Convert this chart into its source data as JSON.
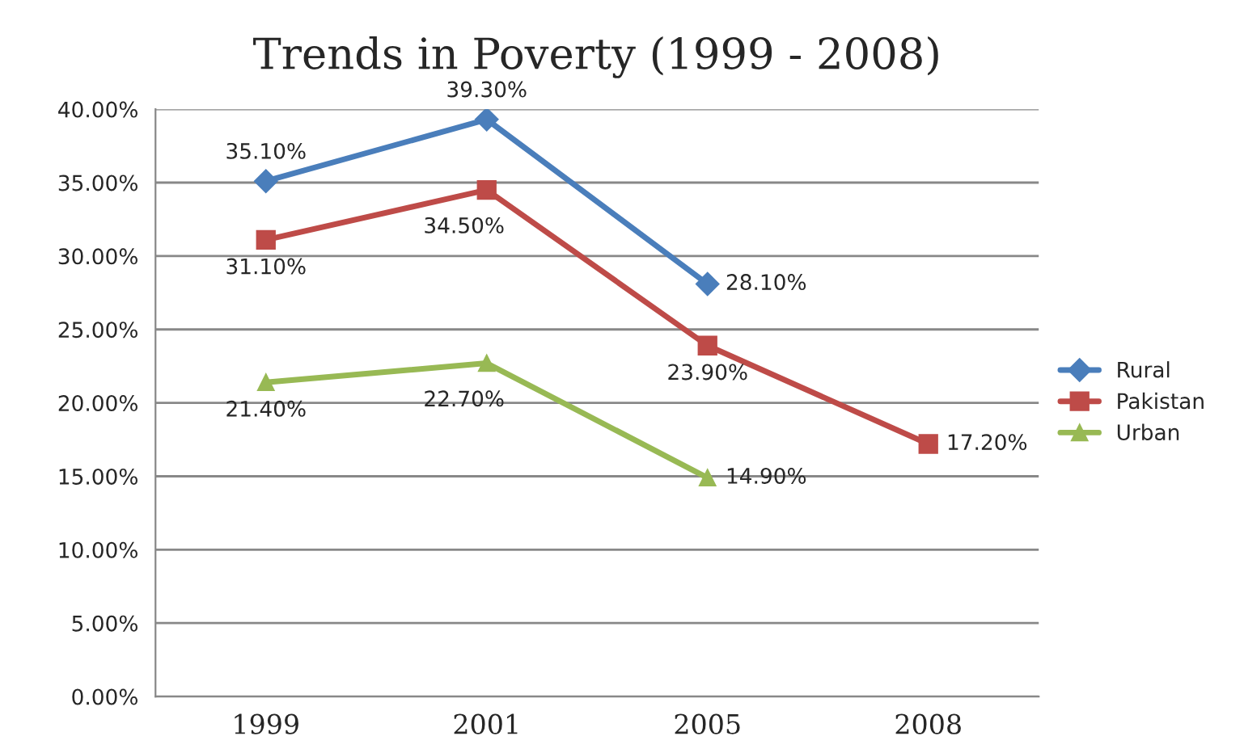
{
  "chart_data": {
    "type": "line",
    "title": "Trends in Poverty (1999 - 2008)",
    "categories": [
      "1999",
      "2001",
      "2005",
      "2008"
    ],
    "series": [
      {
        "name": "Rural",
        "color": "#4a7ebb",
        "marker": "diamond",
        "values": [
          35.1,
          39.3,
          28.1,
          null
        ],
        "value_labels": [
          "35.10%",
          "39.30%",
          "28.10%",
          null
        ]
      },
      {
        "name": "Pakistan",
        "color": "#be4b48",
        "marker": "square",
        "values": [
          31.1,
          34.5,
          23.9,
          17.2
        ],
        "value_labels": [
          "31.10%",
          "34.50%",
          "23.90%",
          "17.20%"
        ]
      },
      {
        "name": "Urban",
        "color": "#98b954",
        "marker": "triangle",
        "values": [
          21.4,
          22.7,
          14.9,
          null
        ],
        "value_labels": [
          "21.40%",
          "22.70%",
          "14.90%",
          null
        ]
      }
    ],
    "ylim": [
      0,
      40
    ],
    "yticks": [
      {
        "value": 0,
        "label": "0.00%"
      },
      {
        "value": 5,
        "label": "5.00%"
      },
      {
        "value": 10,
        "label": "10.00%"
      },
      {
        "value": 15,
        "label": "15.00%"
      },
      {
        "value": 20,
        "label": "20.00%"
      },
      {
        "value": 25,
        "label": "25.00%"
      },
      {
        "value": 30,
        "label": "30.00%"
      },
      {
        "value": 35,
        "label": "35.00%"
      },
      {
        "value": 40,
        "label": "40.00%"
      }
    ],
    "grid": "y",
    "legend": "right",
    "line_style": "solid"
  }
}
